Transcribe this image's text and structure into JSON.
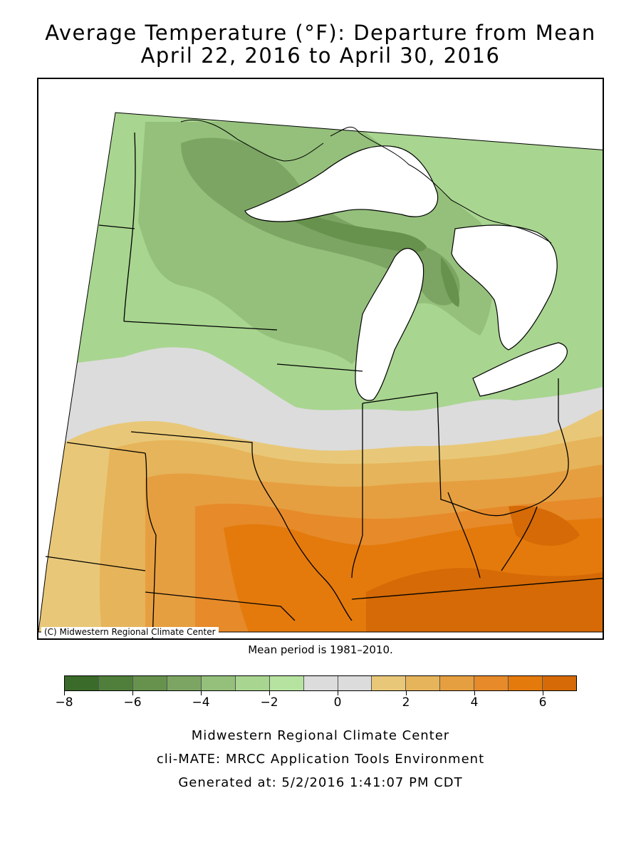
{
  "title": {
    "line1": "Average Temperature (°F): Departure from Mean",
    "line2": "April 22, 2016 to April 30, 2016"
  },
  "map": {
    "region": "Midwest United States",
    "credit": "(C) Midwestern Regional Climate Center",
    "colors": {
      "water": "#ffffff",
      "background": "#ffffff",
      "border": "#000000"
    }
  },
  "mean_period": "Mean period is 1981–2010.",
  "legend": {
    "ticks": [
      "−8",
      "−6",
      "−4",
      "−2",
      "0",
      "2",
      "4",
      "6"
    ],
    "colors": [
      "#3a6b2a",
      "#4f7f3b",
      "#67924d",
      "#7ca563",
      "#94c07b",
      "#a8d590",
      "#b7e3a1",
      "#dcdcdc",
      "#dcdcdc",
      "#e8c878",
      "#e6b45a",
      "#e69f40",
      "#e68a2a",
      "#e47a0c",
      "#d56a06"
    ]
  },
  "footer": {
    "line1": "Midwestern Regional Climate Center",
    "line2": "cli-MATE: MRCC Application Tools Environment",
    "line3": "Generated at: 5/2/2016 1:41:07 PM CDT"
  }
}
